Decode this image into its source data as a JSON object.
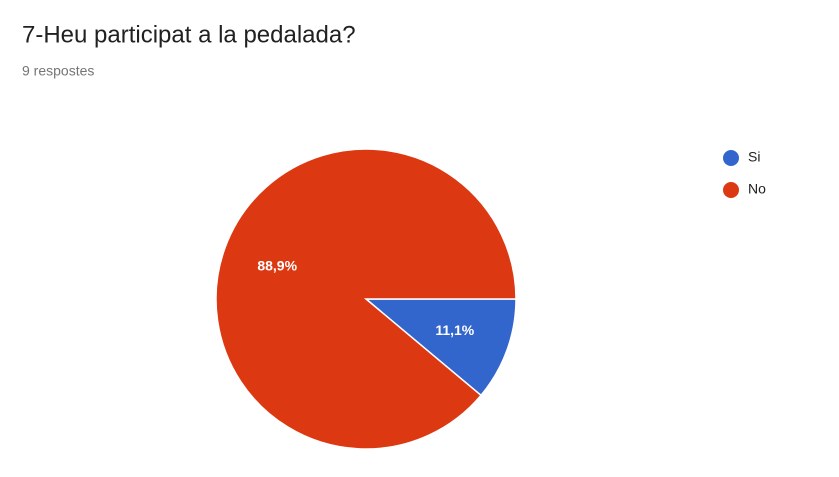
{
  "chart_data": {
    "type": "pie",
    "title": "7-Heu participat a la pedalada?",
    "subtitle": "9 respostes",
    "categories": [
      "Si",
      "No"
    ],
    "values": [
      11.1,
      88.9
    ],
    "value_labels": [
      "11,1%",
      "88,9%"
    ],
    "colors": [
      "#3366cc",
      "#dc3912"
    ],
    "legend": "right"
  }
}
